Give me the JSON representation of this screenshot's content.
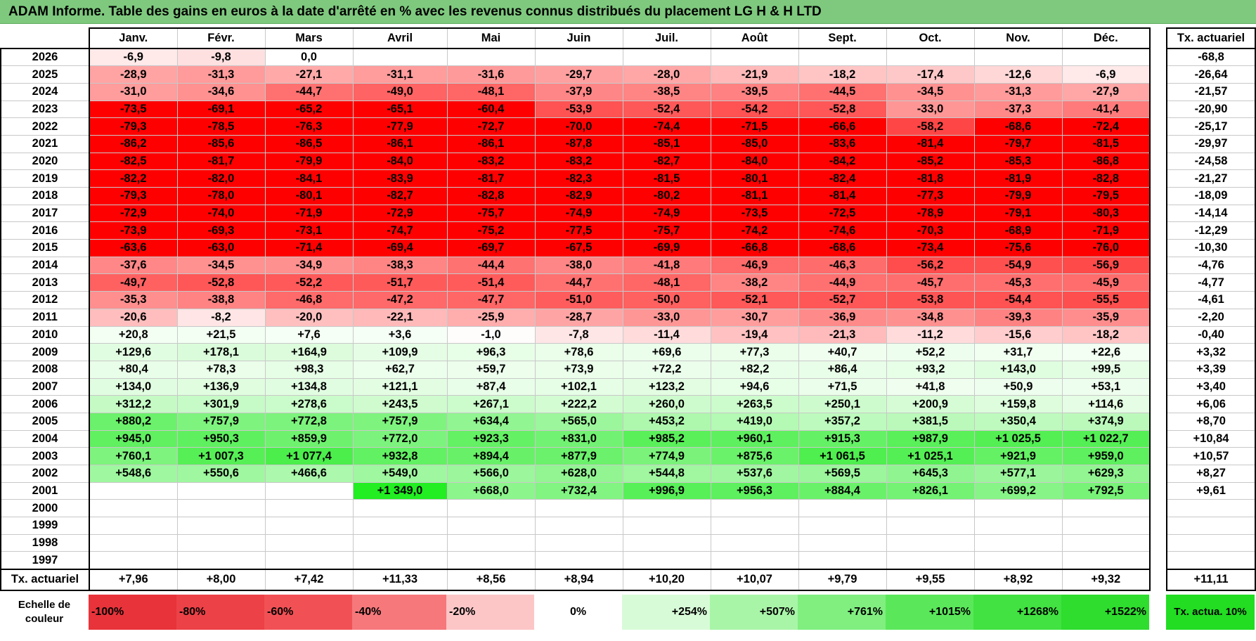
{
  "title": "ADAM Informe. Table des gains en euros à la date d'arrêté en % avec les revenus connus distribués du placement LG H & H LTD",
  "months": [
    "Janv.",
    "Févr.",
    "Mars",
    "Avril",
    "Mai",
    "Juin",
    "Juil.",
    "Août",
    "Sept.",
    "Oct.",
    "Nov.",
    "Déc."
  ],
  "actuarial_header": "Tx. actuariel",
  "rows": [
    {
      "year": "2026",
      "values": [
        "-6,9",
        "-9,8",
        "0,0",
        "",
        "",
        "",
        "",
        "",
        "",
        "",
        "",
        ""
      ],
      "actuarial": "-68,8"
    },
    {
      "year": "2025",
      "values": [
        "-28,9",
        "-31,3",
        "-27,1",
        "-31,1",
        "-31,6",
        "-29,7",
        "-28,0",
        "-21,9",
        "-18,2",
        "-17,4",
        "-12,6",
        "-6,9"
      ],
      "actuarial": "-26,64"
    },
    {
      "year": "2024",
      "values": [
        "-31,0",
        "-34,6",
        "-44,7",
        "-49,0",
        "-48,1",
        "-37,9",
        "-38,5",
        "-39,5",
        "-44,5",
        "-34,5",
        "-31,3",
        "-27,9"
      ],
      "actuarial": "-21,57"
    },
    {
      "year": "2023",
      "values": [
        "-73,5",
        "-69,1",
        "-65,2",
        "-65,1",
        "-60,4",
        "-53,9",
        "-52,4",
        "-54,2",
        "-52,8",
        "-33,0",
        "-37,3",
        "-41,4"
      ],
      "actuarial": "-20,90"
    },
    {
      "year": "2022",
      "values": [
        "-79,3",
        "-78,5",
        "-76,3",
        "-77,9",
        "-72,7",
        "-70,0",
        "-74,4",
        "-71,5",
        "-66,6",
        "-58,2",
        "-68,6",
        "-72,4"
      ],
      "actuarial": "-25,17"
    },
    {
      "year": "2021",
      "values": [
        "-86,2",
        "-85,6",
        "-86,5",
        "-86,1",
        "-86,1",
        "-87,8",
        "-85,1",
        "-85,0",
        "-83,6",
        "-81,4",
        "-79,7",
        "-81,5"
      ],
      "actuarial": "-29,97"
    },
    {
      "year": "2020",
      "values": [
        "-82,5",
        "-81,7",
        "-79,9",
        "-84,0",
        "-83,2",
        "-83,2",
        "-82,7",
        "-84,0",
        "-84,2",
        "-85,2",
        "-85,3",
        "-86,8"
      ],
      "actuarial": "-24,58"
    },
    {
      "year": "2019",
      "values": [
        "-82,2",
        "-82,0",
        "-84,1",
        "-83,9",
        "-81,7",
        "-82,3",
        "-81,5",
        "-80,1",
        "-82,4",
        "-81,8",
        "-81,9",
        "-82,8"
      ],
      "actuarial": "-21,27"
    },
    {
      "year": "2018",
      "values": [
        "-79,3",
        "-78,0",
        "-80,1",
        "-82,7",
        "-82,8",
        "-82,9",
        "-80,2",
        "-81,1",
        "-81,4",
        "-77,3",
        "-79,9",
        "-79,5"
      ],
      "actuarial": "-18,09"
    },
    {
      "year": "2017",
      "values": [
        "-72,9",
        "-74,0",
        "-71,9",
        "-72,9",
        "-75,7",
        "-74,9",
        "-74,9",
        "-73,5",
        "-72,5",
        "-78,9",
        "-79,1",
        "-80,3"
      ],
      "actuarial": "-14,14"
    },
    {
      "year": "2016",
      "values": [
        "-73,9",
        "-69,3",
        "-73,1",
        "-74,7",
        "-75,2",
        "-77,5",
        "-75,7",
        "-74,2",
        "-74,6",
        "-70,3",
        "-68,9",
        "-71,9"
      ],
      "actuarial": "-12,29"
    },
    {
      "year": "2015",
      "values": [
        "-63,6",
        "-63,0",
        "-71,4",
        "-69,4",
        "-69,7",
        "-67,5",
        "-69,9",
        "-66,8",
        "-68,6",
        "-73,4",
        "-75,6",
        "-76,0"
      ],
      "actuarial": "-10,30"
    },
    {
      "year": "2014",
      "values": [
        "-37,6",
        "-34,5",
        "-34,9",
        "-38,3",
        "-44,4",
        "-38,0",
        "-41,8",
        "-46,9",
        "-46,3",
        "-56,2",
        "-54,9",
        "-56,9"
      ],
      "actuarial": "-4,76"
    },
    {
      "year": "2013",
      "values": [
        "-49,7",
        "-52,8",
        "-52,2",
        "-51,7",
        "-51,4",
        "-44,7",
        "-48,1",
        "-38,2",
        "-44,9",
        "-45,7",
        "-45,3",
        "-45,9"
      ],
      "actuarial": "-4,77"
    },
    {
      "year": "2012",
      "values": [
        "-35,3",
        "-38,8",
        "-46,8",
        "-47,2",
        "-47,7",
        "-51,0",
        "-50,0",
        "-52,1",
        "-52,7",
        "-53,8",
        "-54,4",
        "-55,5"
      ],
      "actuarial": "-4,61"
    },
    {
      "year": "2011",
      "values": [
        "-20,6",
        "-8,2",
        "-20,0",
        "-22,1",
        "-25,9",
        "-28,7",
        "-33,0",
        "-30,7",
        "-36,9",
        "-34,8",
        "-39,3",
        "-35,9"
      ],
      "actuarial": "-2,20"
    },
    {
      "year": "2010",
      "values": [
        "+20,8",
        "+21,5",
        "+7,6",
        "+3,6",
        "-1,0",
        "-7,8",
        "-11,4",
        "-19,4",
        "-21,3",
        "-11,2",
        "-15,6",
        "-18,2"
      ],
      "actuarial": "-0,40"
    },
    {
      "year": "2009",
      "values": [
        "+129,6",
        "+178,1",
        "+164,9",
        "+109,9",
        "+96,3",
        "+78,6",
        "+69,6",
        "+77,3",
        "+40,7",
        "+52,2",
        "+31,7",
        "+22,6"
      ],
      "actuarial": "+3,32"
    },
    {
      "year": "2008",
      "values": [
        "+80,4",
        "+78,3",
        "+98,3",
        "+62,7",
        "+59,7",
        "+73,9",
        "+72,2",
        "+82,2",
        "+86,4",
        "+93,2",
        "+143,0",
        "+99,5"
      ],
      "actuarial": "+3,39"
    },
    {
      "year": "2007",
      "values": [
        "+134,0",
        "+136,9",
        "+134,8",
        "+121,1",
        "+87,4",
        "+102,1",
        "+123,2",
        "+94,6",
        "+71,5",
        "+41,8",
        "+50,9",
        "+53,1"
      ],
      "actuarial": "+3,40"
    },
    {
      "year": "2006",
      "values": [
        "+312,2",
        "+301,9",
        "+278,6",
        "+243,5",
        "+267,1",
        "+222,2",
        "+260,0",
        "+263,5",
        "+250,1",
        "+200,9",
        "+159,8",
        "+114,6"
      ],
      "actuarial": "+6,06"
    },
    {
      "year": "2005",
      "values": [
        "+880,2",
        "+757,9",
        "+772,8",
        "+757,9",
        "+634,4",
        "+565,0",
        "+453,2",
        "+419,0",
        "+357,2",
        "+381,5",
        "+350,4",
        "+374,9"
      ],
      "actuarial": "+8,70"
    },
    {
      "year": "2004",
      "values": [
        "+945,0",
        "+950,3",
        "+859,9",
        "+772,0",
        "+923,3",
        "+831,0",
        "+985,2",
        "+960,1",
        "+915,3",
        "+987,9",
        "+1 025,5",
        "+1 022,7"
      ],
      "actuarial": "+10,84"
    },
    {
      "year": "2003",
      "values": [
        "+760,1",
        "+1 007,3",
        "+1 077,4",
        "+932,8",
        "+894,4",
        "+877,9",
        "+774,9",
        "+875,6",
        "+1 061,5",
        "+1 025,1",
        "+921,9",
        "+959,0"
      ],
      "actuarial": "+10,57"
    },
    {
      "year": "2002",
      "values": [
        "+548,6",
        "+550,6",
        "+466,6",
        "+549,0",
        "+566,0",
        "+628,0",
        "+544,8",
        "+537,6",
        "+569,5",
        "+645,3",
        "+577,1",
        "+629,3"
      ],
      "actuarial": "+8,27"
    },
    {
      "year": "2001",
      "values": [
        "",
        "",
        "",
        "+1 349,0",
        "+668,0",
        "+732,4",
        "+996,9",
        "+956,3",
        "+884,4",
        "+826,1",
        "+699,2",
        "+792,5"
      ],
      "actuarial": "+9,61"
    },
    {
      "year": "2000",
      "values": [
        "",
        "",
        "",
        "",
        "",
        "",
        "",
        "",
        "",
        "",
        "",
        ""
      ],
      "actuarial": ""
    },
    {
      "year": "1999",
      "values": [
        "",
        "",
        "",
        "",
        "",
        "",
        "",
        "",
        "",
        "",
        "",
        ""
      ],
      "actuarial": ""
    },
    {
      "year": "1998",
      "values": [
        "",
        "",
        "",
        "",
        "",
        "",
        "",
        "",
        "",
        "",
        "",
        ""
      ],
      "actuarial": ""
    },
    {
      "year": "1997",
      "values": [
        "",
        "",
        "",
        "",
        "",
        "",
        "",
        "",
        "",
        "",
        "",
        ""
      ],
      "actuarial": ""
    }
  ],
  "totals": {
    "label": "Tx. actuariel",
    "values": [
      "+7,96",
      "+8,00",
      "+7,42",
      "+11,33",
      "+8,56",
      "+8,94",
      "+10,20",
      "+10,07",
      "+9,79",
      "+9,55",
      "+8,92",
      "+9,32"
    ],
    "actuarial": "+11,11"
  },
  "scale": {
    "label": "Echelle de couleur",
    "swatches": [
      {
        "label": "-100%",
        "color": "#e8333a"
      },
      {
        "label": "-80%",
        "color": "#ec4147"
      },
      {
        "label": "-60%",
        "color": "#f15155"
      },
      {
        "label": "-40%",
        "color": "#f6787b"
      },
      {
        "label": "-20%",
        "color": "#fcc6c7"
      },
      {
        "label": "0%",
        "color": "#ffffff"
      },
      {
        "label": "+254%",
        "color": "#d7fbd7"
      },
      {
        "label": "+507%",
        "color": "#a8f5a8"
      },
      {
        "label": "+761%",
        "color": "#80ef80"
      },
      {
        "label": "+1015%",
        "color": "#5ae85a"
      },
      {
        "label": "+1268%",
        "color": "#41e241"
      },
      {
        "label": "+1522%",
        "color": "#2edd2e"
      }
    ],
    "actuarial_label": "Tx. actua. 10%",
    "actuarial_color": "#22dd22"
  }
}
